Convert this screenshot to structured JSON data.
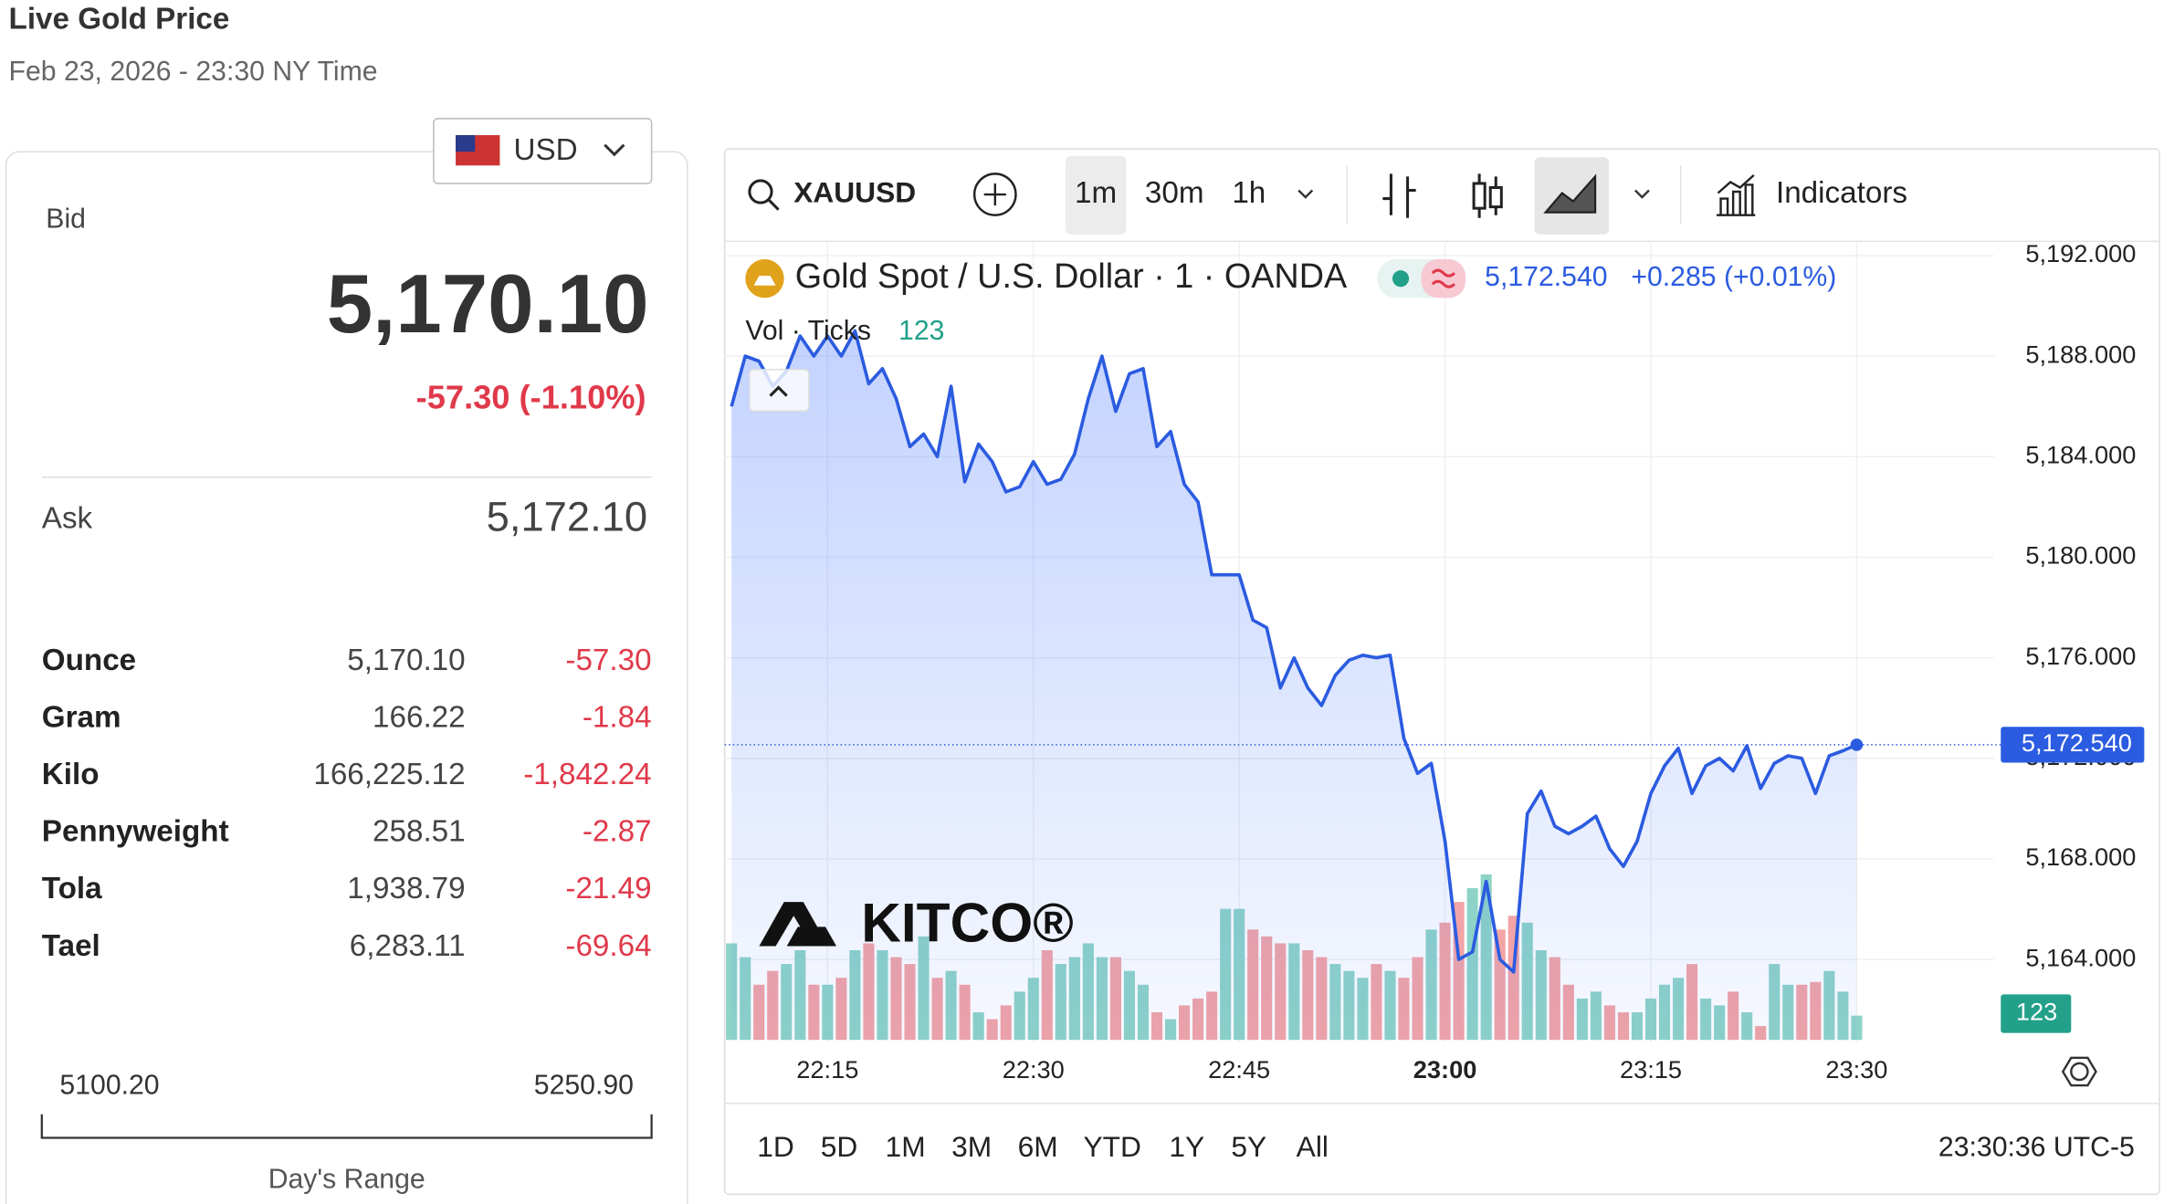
{
  "header": {
    "title": "Live Gold Price",
    "subtitle": "Feb 23, 2026 - 23:30 NY Time"
  },
  "currency": "USD",
  "quote": {
    "bid_label": "Bid",
    "bid": "5,170.10",
    "change": "-57.30 (-1.10%)",
    "ask_label": "Ask",
    "ask": "5,172.10"
  },
  "units": {
    "rows": [
      [
        "Ounce",
        "5,170.10",
        "-57.30"
      ],
      [
        "Gram",
        "166.22",
        "-1.84"
      ],
      [
        "Kilo",
        "166,225.12",
        "-1,842.24"
      ],
      [
        "Pennyweight",
        "258.51",
        "-2.87"
      ],
      [
        "Tola",
        "1,938.79",
        "-21.49"
      ],
      [
        "Tael",
        "6,283.11",
        "-69.64"
      ]
    ]
  },
  "day_range": {
    "low": "5100.20",
    "high": "5250.90",
    "label": "Day's Range"
  },
  "toolbar": {
    "symbol": "XAUUSD",
    "intervals": [
      "1m",
      "30m",
      "1h"
    ],
    "indicators": "Indicators"
  },
  "ranges": [
    "1D",
    "5D",
    "1M",
    "3M",
    "6M",
    "YTD",
    "1Y",
    "5Y",
    "All"
  ],
  "clock": "23:30:36 UTC-5",
  "chart_data": {
    "type": "line",
    "title": "Gold Spot / U.S. Dollar · 1 · OANDA",
    "last_value_label": "5,172.540",
    "change_label": "+0.285 (+0.01%)",
    "volume_last_label": "123",
    "watermark": "KITCO®",
    "x": [
      "22:08",
      "22:09",
      "22:10",
      "22:11",
      "22:12",
      "22:13",
      "22:14",
      "22:15",
      "22:16",
      "22:17",
      "22:18",
      "22:19",
      "22:20",
      "22:21",
      "22:22",
      "22:23",
      "22:24",
      "22:25",
      "22:26",
      "22:27",
      "22:28",
      "22:29",
      "22:30",
      "22:31",
      "22:32",
      "22:33",
      "22:34",
      "22:35",
      "22:36",
      "22:37",
      "22:38",
      "22:39",
      "22:40",
      "22:41",
      "22:42",
      "22:43",
      "22:44",
      "22:45",
      "22:46",
      "22:47",
      "22:48",
      "22:49",
      "22:50",
      "22:51",
      "22:52",
      "22:53",
      "22:54",
      "22:55",
      "22:56",
      "22:57",
      "22:58",
      "22:59",
      "23:00",
      "23:01",
      "23:02",
      "23:03",
      "23:04",
      "23:05",
      "23:06",
      "23:07",
      "23:08",
      "23:09",
      "23:10",
      "23:11",
      "23:12",
      "23:13",
      "23:14",
      "23:15",
      "23:16",
      "23:17",
      "23:18",
      "23:19",
      "23:20",
      "23:21",
      "23:22",
      "23:23",
      "23:24",
      "23:25",
      "23:26",
      "23:27",
      "23:28",
      "23:29",
      "23:30"
    ],
    "series": [
      {
        "color": "#2b5be0",
        "values": [
          5186.0,
          5188.0,
          5187.8,
          5186.8,
          5187.4,
          5188.8,
          5188.0,
          5188.8,
          5188.0,
          5189.0,
          5186.9,
          5187.5,
          5186.3,
          5184.4,
          5184.9,
          5184.0,
          5186.8,
          5183.0,
          5184.5,
          5183.8,
          5182.6,
          5182.8,
          5183.8,
          5182.9,
          5183.1,
          5184.1,
          5186.3,
          5188.0,
          5185.8,
          5187.3,
          5187.5,
          5184.4,
          5185.0,
          5182.9,
          5182.2,
          5179.3,
          5179.3,
          5179.3,
          5177.5,
          5177.2,
          5174.8,
          5176.0,
          5174.8,
          5174.1,
          5175.3,
          5175.9,
          5176.1,
          5176.0,
          5176.1,
          5172.8,
          5171.4,
          5171.8,
          5168.7,
          5164.0,
          5164.3,
          5167.1,
          5164.0,
          5163.5,
          5169.8,
          5170.7,
          5169.3,
          5169.0,
          5169.3,
          5169.7,
          5168.4,
          5167.7,
          5168.7,
          5170.6,
          5171.7,
          5172.4,
          5170.6,
          5171.7,
          5172.0,
          5171.5,
          5172.5,
          5170.8,
          5171.8,
          5172.1,
          5172.0,
          5170.6,
          5172.1,
          5172.3,
          5172.54
        ]
      },
      {
        "name": "Vol · Ticks",
        "up_color": "#8ed3c8",
        "down_color": "#f2a4a6",
        "values": [
          490,
          420,
          280,
          350,
          385,
          455,
          280,
          280,
          315,
          455,
          490,
          455,
          420,
          385,
          525,
          315,
          350,
          280,
          140,
          105,
          175,
          245,
          315,
          455,
          385,
          420,
          490,
          420,
          420,
          350,
          280,
          140,
          105,
          175,
          210,
          245,
          665,
          665,
          560,
          525,
          490,
          490,
          455,
          420,
          385,
          350,
          315,
          385,
          350,
          315,
          420,
          560,
          595,
          700,
          770,
          840,
          560,
          630,
          595,
          455,
          420,
          280,
          210,
          245,
          175,
          140,
          140,
          210,
          280,
          315,
          385,
          210,
          175,
          245,
          140,
          70,
          385,
          280,
          280,
          294,
          350,
          245,
          123
        ]
      }
    ],
    "xlim": [
      "22:07",
      "23:40"
    ],
    "xticks": [
      "22:15",
      "22:30",
      "22:45",
      "23:00",
      "23:15",
      "23:30"
    ],
    "ylim": [
      5160.8,
      5192.4
    ],
    "yticks": [
      {
        "value": 5164,
        "label": "5,164.000"
      },
      {
        "value": 5168,
        "label": "5,168.000"
      },
      {
        "value": 5172,
        "label": "5,172.000"
      },
      {
        "value": 5176,
        "label": "5,176.000"
      },
      {
        "value": 5180,
        "label": "5,180.000"
      },
      {
        "value": 5184,
        "label": "5,184.000"
      },
      {
        "value": 5188,
        "label": "5,188.000"
      },
      {
        "value": 5192,
        "label": "5,192.000"
      }
    ],
    "grid": true
  }
}
